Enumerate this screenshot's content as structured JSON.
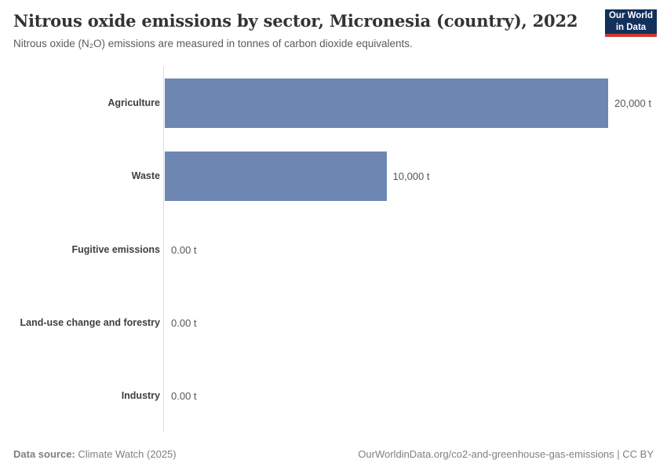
{
  "header": {
    "title": "Nitrous oxide emissions by sector, Micronesia (country), 2022",
    "subtitle": "Nitrous oxide (N₂O) emissions are measured in tonnes of carbon dioxide equivalents.",
    "logo": {
      "line1": "Our World",
      "line2": "in Data",
      "bg_color": "#12305b",
      "accent_color": "#d0352a"
    }
  },
  "chart_data": {
    "type": "bar",
    "orientation": "horizontal",
    "title": "Nitrous oxide emissions by sector, Micronesia (country), 2022",
    "categories": [
      "Agriculture",
      "Waste",
      "Fugitive emissions",
      "Land-use change and forestry",
      "Industry"
    ],
    "values": [
      20000,
      10000,
      0,
      0,
      0
    ],
    "value_labels": [
      "20,000 t",
      "10,000 t",
      "0.00 t",
      "0.00 t",
      "0.00 t"
    ],
    "unit": "t",
    "xlim": [
      0,
      20000
    ],
    "grid": false,
    "legend": false,
    "bar_color": "#6e87b2"
  },
  "footer": {
    "data_source_label": "Data source:",
    "data_source_value": "Climate Watch (2025)",
    "attribution": "OurWorldinData.org/co2-and-greenhouse-gas-emissions | CC BY"
  }
}
